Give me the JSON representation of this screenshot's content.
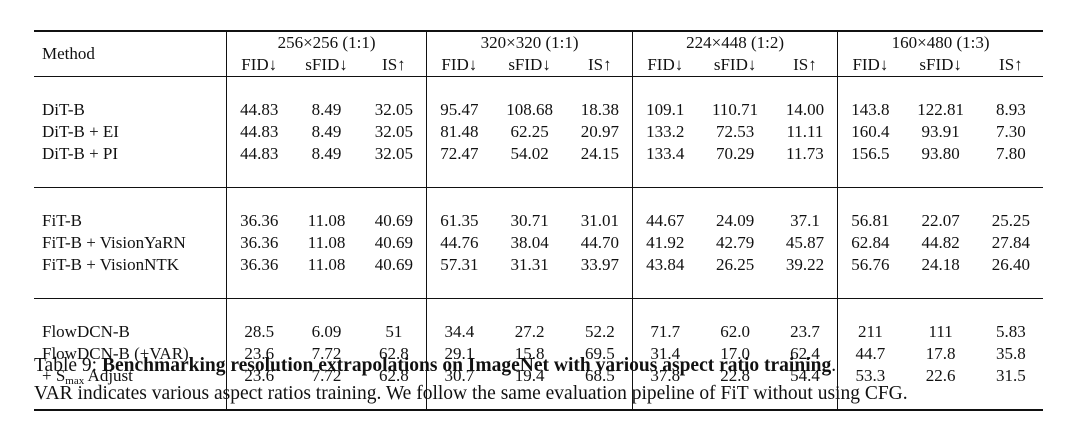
{
  "table": {
    "method_header": "Method",
    "resolutions": [
      "256×256 (1:1)",
      "320×320 (1:1)",
      "224×448 (1:2)",
      "160×480 (1:3)"
    ],
    "metrics": [
      "FID↓",
      "sFID↓",
      "IS↑"
    ],
    "groups": [
      {
        "rows": [
          {
            "method": "DiT-B",
            "values": [
              "44.83",
              "8.49",
              "32.05",
              "95.47",
              "108.68",
              "18.38",
              "109.1",
              "110.71",
              "14.00",
              "143.8",
              "122.81",
              "8.93"
            ]
          },
          {
            "method": "DiT-B + EI",
            "values": [
              "44.83",
              "8.49",
              "32.05",
              "81.48",
              "62.25",
              "20.97",
              "133.2",
              "72.53",
              "11.11",
              "160.4",
              "93.91",
              "7.30"
            ]
          },
          {
            "method": "DiT-B + PI",
            "values": [
              "44.83",
              "8.49",
              "32.05",
              "72.47",
              "54.02",
              "24.15",
              "133.4",
              "70.29",
              "11.73",
              "156.5",
              "93.80",
              "7.80"
            ]
          }
        ]
      },
      {
        "rows": [
          {
            "method": "FiT-B",
            "values": [
              "36.36",
              "11.08",
              "40.69",
              "61.35",
              "30.71",
              "31.01",
              "44.67",
              "24.09",
              "37.1",
              "56.81",
              "22.07",
              "25.25"
            ]
          },
          {
            "method": "FiT-B + VisionYaRN",
            "values": [
              "36.36",
              "11.08",
              "40.69",
              "44.76",
              "38.04",
              "44.70",
              "41.92",
              "42.79",
              "45.87",
              "62.84",
              "44.82",
              "27.84"
            ]
          },
          {
            "method": "FiT-B + VisionNTK",
            "values": [
              "36.36",
              "11.08",
              "40.69",
              "57.31",
              "31.31",
              "33.97",
              "43.84",
              "26.25",
              "39.22",
              "56.76",
              "24.18",
              "26.40"
            ]
          }
        ]
      },
      {
        "rows": [
          {
            "method": "FlowDCN-B",
            "values": [
              "28.5",
              "6.09",
              "51",
              "34.4",
              "27.2",
              "52.2",
              "71.7",
              "62.0",
              "23.7",
              "211",
              "111",
              "5.83"
            ]
          },
          {
            "method": "FlowDCN-B (+VAR)",
            "values": [
              "23.6",
              "7.72",
              "62.8",
              "29.1",
              "15.8",
              "69.5",
              "31.4",
              "17.0",
              "62.4",
              "44.7",
              "17.8",
              "35.8"
            ]
          },
          {
            "method_prefix": "+ S",
            "method_sub": "max",
            "method_suffix": " Adjust",
            "values": [
              "23.6",
              "7.72",
              "62.8",
              "30.7",
              "19.4",
              "68.5",
              "37.8",
              "22.8",
              "54.4",
              "53.3",
              "22.6",
              "31.5"
            ]
          }
        ]
      }
    ]
  },
  "caption": {
    "label": "Table 9: ",
    "title": "Benchmarking resolution extrapolations on ImageNet with various aspect ratio training",
    "title_end": ".",
    "text": "VAR indicates various aspect ratios training. We follow the same evaluation pipeline of FiT without using CFG."
  }
}
